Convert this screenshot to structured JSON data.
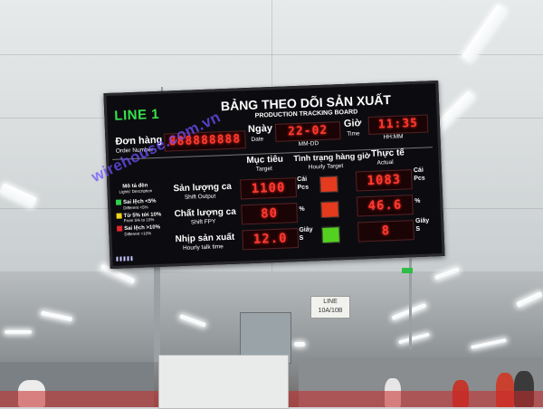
{
  "board": {
    "line": "LINE 1",
    "title": "BẢNG THEO DÕI SẢN XUẤT",
    "subtitle": "PRODUCTION TRACKING BOARD",
    "order_label": "Đơn hàng",
    "order_sub": "Order Number",
    "order_value": "888888888",
    "date_label": "Ngày",
    "date_sub": "Date",
    "date_value": "22-02",
    "date_format": "MM-DD",
    "time_label": "Giờ",
    "time_sub": "Time",
    "time_value": "11:35",
    "time_format": "HH:MM",
    "col_target": "Mục tiêu",
    "col_target_sub": "Target",
    "col_hourly": "Tình trạng hàng giờ",
    "col_hourly_sub": "Hourly Target",
    "col_actual": "Thực tế",
    "col_actual_sub": "Actual",
    "legend_title": "Mô tả đèn",
    "legend_title_sub": "Lights' Description",
    "legend": [
      {
        "label": "Sai lệch <5%",
        "sub": "Different <5%",
        "color": "#2fd14a"
      },
      {
        "label": "Từ 5% tới 10%",
        "sub": "From 5% to 10%",
        "color": "#f3d21c"
      },
      {
        "label": "Sai lệch >10%",
        "sub": "Different >10%",
        "color": "#e2262e"
      }
    ],
    "rows": [
      {
        "label": "Sản lượng ca",
        "sub": "Shift Output",
        "target": "1100",
        "unit_target": "Cái",
        "unit_target_sub": "Pcs",
        "light": "#e43a1e",
        "actual": "1083",
        "unit_actual": "Cái",
        "unit_actual_sub": "Pcs"
      },
      {
        "label": "Chất lượng ca",
        "sub": "Shift FPY",
        "target": "80",
        "unit_target": "%",
        "unit_target_sub": "",
        "light": "#e43a1e",
        "actual": "46.6",
        "unit_actual": "%",
        "unit_actual_sub": ""
      },
      {
        "label": "Nhịp sản xuất",
        "sub": "Hourly talk time",
        "target": "12.0",
        "unit_target": "Giây",
        "unit_target_sub": "S",
        "light": "#54d11f",
        "actual": "8",
        "unit_actual": "Giây",
        "unit_actual_sub": "S"
      }
    ]
  },
  "watermark": "wirehouse.com.vn",
  "sign": {
    "line1": "LINE",
    "line2": "10A/10B"
  }
}
